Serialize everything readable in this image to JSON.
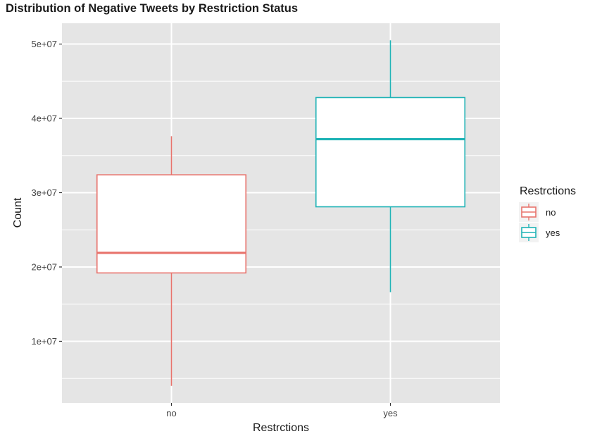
{
  "chart_data": {
    "type": "box",
    "title": "Distribution of Negative Tweets by Restriction Status",
    "xlabel": "Restrctions",
    "ylabel": "Count",
    "categories": [
      "no",
      "yes"
    ],
    "ylim": [
      1700000,
      52800000
    ],
    "yticks": [
      10000000,
      20000000,
      30000000,
      40000000,
      50000000
    ],
    "ytick_labels": [
      "1e+07",
      "2e+07",
      "3e+07",
      "4e+07",
      "5e+07"
    ],
    "boxes": [
      {
        "category": "no",
        "min": 4000000,
        "q1": 19200000,
        "median": 21900000,
        "q3": 32400000,
        "max": 37600000,
        "color": "#E8736C"
      },
      {
        "category": "yes",
        "min": 16600000,
        "q1": 28100000,
        "median": 37200000,
        "q3": 42800000,
        "max": 50500000,
        "color": "#1FB3B6"
      }
    ],
    "legend": {
      "title": "Restrctions",
      "entries": [
        "no",
        "yes"
      ],
      "placement": "right"
    },
    "grid": true,
    "panel_color": "#E5E5E5",
    "grid_color": "#FFFFFF"
  }
}
